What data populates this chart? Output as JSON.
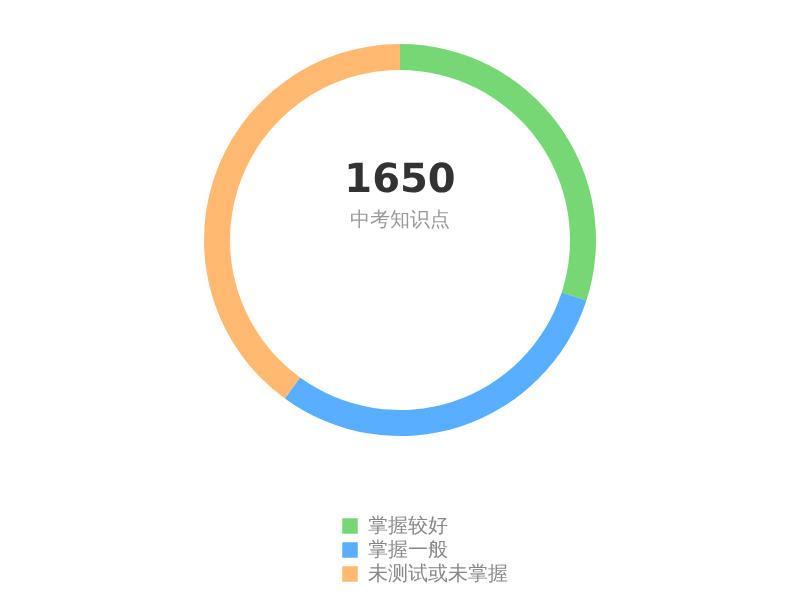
{
  "chart_data": {
    "type": "donut",
    "title": "1650",
    "subtitle": "中考知识点",
    "categories": [
      "掌握较好",
      "掌握一般",
      "未测试或未掌握"
    ],
    "values": [
      30,
      30,
      40
    ],
    "colors": [
      "#75d874",
      "#58afff",
      "#ffb970"
    ],
    "legend": "bottom"
  }
}
